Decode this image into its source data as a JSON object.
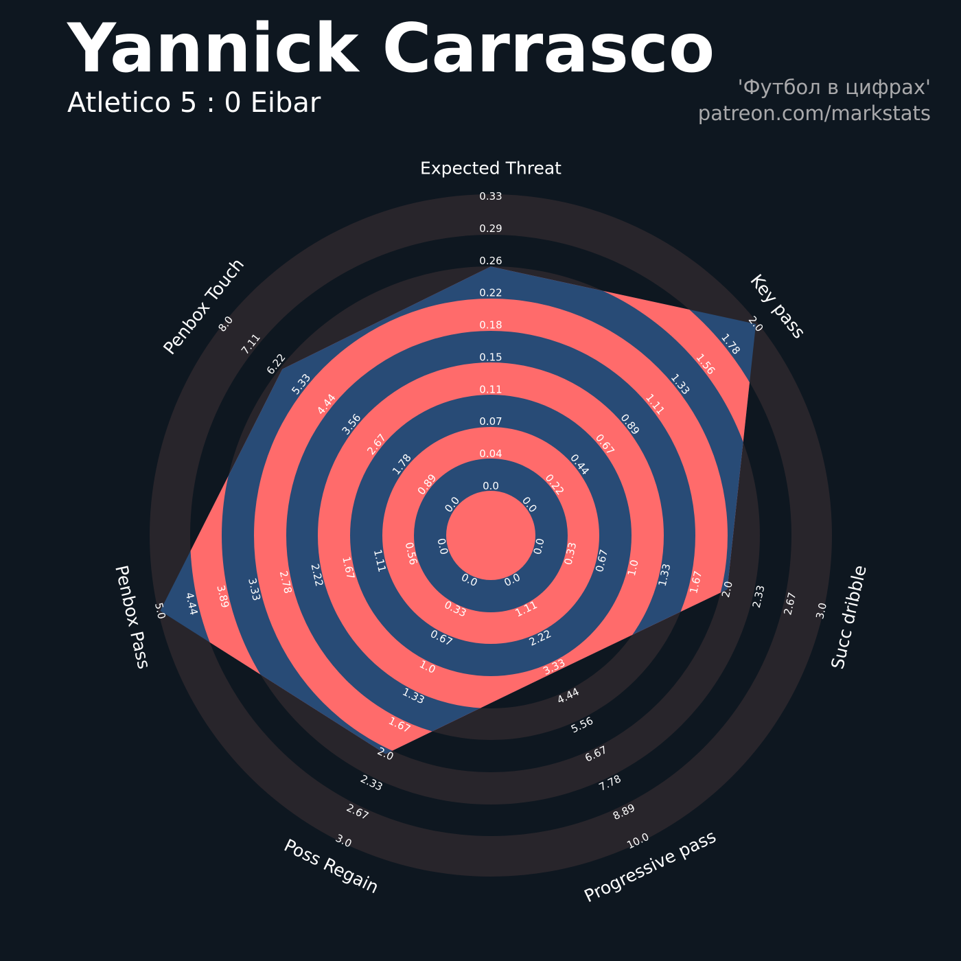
{
  "header": {
    "title": "Yannick Carrasco",
    "subtitle": "Atletico 5 : 0 Eibar",
    "credit_line1": "'Футбол в цифрах'",
    "credit_line2": "patreon.com/markstats"
  },
  "colors": {
    "background": "#0e1720",
    "ring_outside": "#28252b",
    "polygon_band_a": "#ff6b6b",
    "polygon_band_b": "#284b76",
    "text": "#ffffff",
    "credits": "#a9a9ab"
  },
  "chart_data": {
    "type": "radar",
    "params": [
      {
        "name": "Expected Threat",
        "min": 0,
        "max": 0.33,
        "value": 0.25,
        "ticks": [
          "0.0",
          "0.04",
          "0.07",
          "0.11",
          "0.15",
          "0.18",
          "0.22",
          "0.26",
          "0.29",
          "0.33"
        ]
      },
      {
        "name": "Key pass",
        "min": 0,
        "max": 2.0,
        "value": 2.0,
        "ticks": [
          "0.0",
          "0.22",
          "0.44",
          "0.67",
          "0.89",
          "1.11",
          "1.33",
          "1.56",
          "1.78",
          "2.0"
        ]
      },
      {
        "name": "Succ dribble",
        "min": 0,
        "max": 3.0,
        "value": 2.0,
        "ticks": [
          "0.0",
          "0.33",
          "0.67",
          "1.0",
          "1.33",
          "1.67",
          "2.0",
          "2.33",
          "2.67",
          "3.0"
        ]
      },
      {
        "name": "Progressive pass",
        "min": 0,
        "max": 10.0,
        "value": 3.5,
        "ticks": [
          "0.0",
          "1.11",
          "2.22",
          "3.33",
          "4.44",
          "5.56",
          "6.67",
          "7.78",
          "8.89",
          "10.0"
        ]
      },
      {
        "name": "Poss Regain",
        "min": 0,
        "max": 3.0,
        "value": 2.0,
        "ticks": [
          "0.0",
          "0.33",
          "0.67",
          "1.0",
          "1.33",
          "1.67",
          "2.0",
          "2.33",
          "2.67",
          "3.0"
        ]
      },
      {
        "name": "Penbox Pass",
        "min": 0,
        "max": 5.0,
        "value": 5.0,
        "ticks": [
          "0.0",
          "0.56",
          "1.11",
          "1.67",
          "2.22",
          "2.78",
          "3.33",
          "3.89",
          "4.44",
          "5.0"
        ]
      },
      {
        "name": "Penbox Touch",
        "min": 0,
        "max": 8.0,
        "value": 6.0,
        "ticks": [
          "0.0",
          "0.89",
          "1.78",
          "2.67",
          "3.56",
          "4.44",
          "5.33",
          "6.22",
          "7.11",
          "8.0"
        ]
      }
    ]
  }
}
